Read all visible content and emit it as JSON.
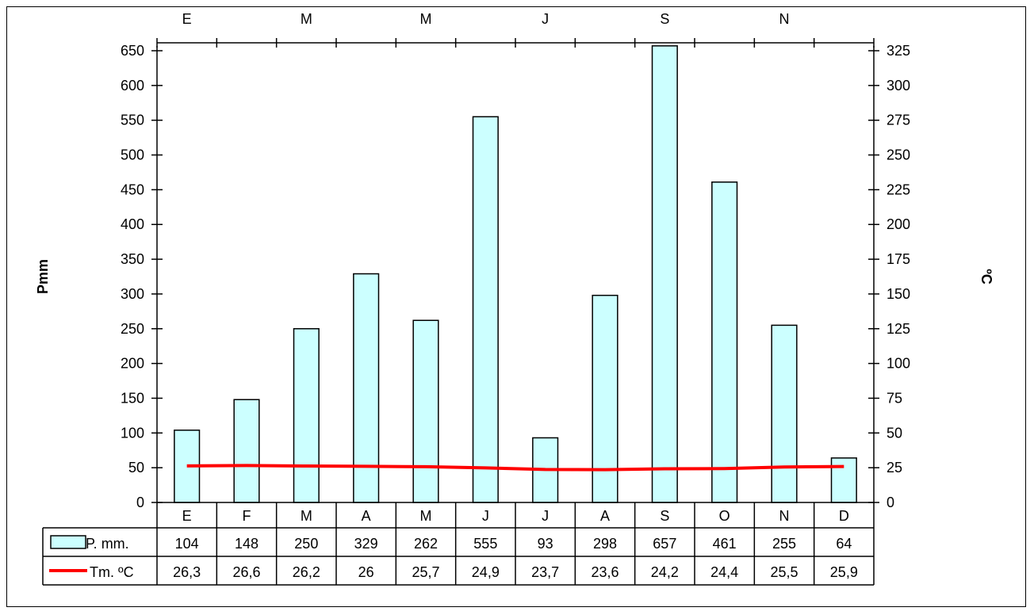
{
  "chart_data": {
    "type": "bar",
    "categories": [
      "E",
      "F",
      "M",
      "A",
      "M",
      "J",
      "J",
      "A",
      "S",
      "O",
      "N",
      "D"
    ],
    "top_axis_labels": [
      "E",
      "M",
      "M",
      "J",
      "S",
      "N"
    ],
    "series": [
      {
        "name": "P. mm.",
        "type": "bar",
        "axis": "left",
        "values": [
          104,
          148,
          250,
          329,
          262,
          555,
          93,
          298,
          657,
          461,
          255,
          64
        ]
      },
      {
        "name": "Tm. ºC",
        "type": "line",
        "axis": "right",
        "values": [
          26.3,
          26.6,
          26.2,
          26,
          25.7,
          24.9,
          23.7,
          23.6,
          24.2,
          24.4,
          25.5,
          25.9
        ]
      }
    ],
    "table_values": {
      "P. mm.": [
        "104",
        "148",
        "250",
        "329",
        "262",
        "555",
        "93",
        "298",
        "657",
        "461",
        "255",
        "64"
      ],
      "Tm. ºC": [
        "26,3",
        "26,6",
        "26,2",
        "26",
        "25,7",
        "24,9",
        "23,7",
        "23,6",
        "24,2",
        "24,4",
        "25,5",
        "25,9"
      ]
    },
    "ylabel": "Pmm",
    "y2label": "ºC",
    "ylim": [
      0,
      650
    ],
    "y2lim": [
      0,
      325
    ],
    "yticks": [
      "0",
      "50",
      "100",
      "150",
      "200",
      "250",
      "300",
      "350",
      "400",
      "450",
      "500",
      "550",
      "600",
      "650"
    ],
    "y2ticks": [
      "0",
      "25",
      "50",
      "75",
      "100",
      "125",
      "150",
      "175",
      "200",
      "225",
      "250",
      "275",
      "300",
      "325"
    ],
    "grid": false,
    "legend": "data-table",
    "colors": {
      "bar_fill": "#ccffff",
      "bar_stroke": "#000000",
      "line": "#ff0000"
    }
  }
}
